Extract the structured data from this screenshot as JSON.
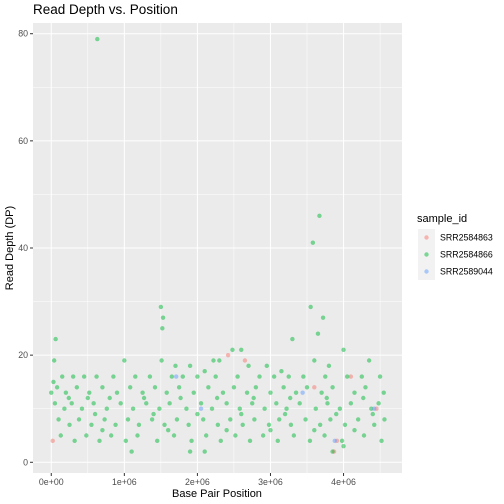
{
  "chart_data": {
    "type": "scatter",
    "title": "Read Depth vs. Position",
    "xlabel": "Base Pair Position",
    "ylabel": "Read Depth (DP)",
    "xlim": [
      -250000,
      4800000
    ],
    "ylim": [
      -2,
      82
    ],
    "x_ticks": [
      0,
      1000000,
      2000000,
      3000000,
      4000000
    ],
    "x_tick_labels": [
      "0e+00",
      "1e+06",
      "2e+06",
      "3e+06",
      "4e+06"
    ],
    "y_ticks": [
      0,
      20,
      40,
      60,
      80
    ],
    "y_tick_labels": [
      "0",
      "20",
      "40",
      "60",
      "80"
    ],
    "grid": true,
    "legend_position": "right",
    "legend_title": "sample_id",
    "series": [
      {
        "name": "SRR2584863",
        "color": "#F8766D",
        "points": [
          [
            20000,
            4
          ],
          [
            2420000,
            20
          ],
          [
            2650000,
            19
          ],
          [
            3600000,
            14
          ],
          [
            3870000,
            2
          ],
          [
            3910000,
            4
          ],
          [
            4100000,
            16
          ],
          [
            4450000,
            10
          ]
        ]
      },
      {
        "name": "SRR2584866",
        "color": "#00BA38",
        "points": [
          [
            630000,
            79
          ],
          [
            3670000,
            46
          ],
          [
            3580000,
            41
          ],
          [
            1500000,
            29
          ],
          [
            1530000,
            27
          ],
          [
            1520000,
            25
          ],
          [
            3550000,
            29
          ],
          [
            3720000,
            27
          ],
          [
            60000,
            23
          ],
          [
            2480000,
            21
          ],
          [
            2600000,
            21
          ],
          [
            4000000,
            21
          ],
          [
            3300000,
            23
          ],
          [
            3650000,
            24
          ],
          [
            40000,
            19
          ],
          [
            1510000,
            19
          ],
          [
            2220000,
            19
          ],
          [
            2300000,
            19
          ],
          [
            1000000,
            19
          ],
          [
            3600000,
            19
          ],
          [
            4350000,
            19
          ],
          [
            1700000,
            18
          ],
          [
            1900000,
            18
          ],
          [
            2100000,
            17
          ],
          [
            2700000,
            18
          ],
          [
            2950000,
            18
          ],
          [
            3800000,
            18
          ],
          [
            3150000,
            17
          ],
          [
            30000,
            15
          ],
          [
            150000,
            16
          ],
          [
            300000,
            16
          ],
          [
            450000,
            16
          ],
          [
            620000,
            16
          ],
          [
            850000,
            16
          ],
          [
            1150000,
            16
          ],
          [
            1350000,
            16
          ],
          [
            1650000,
            16
          ],
          [
            1800000,
            16
          ],
          [
            2000000,
            16
          ],
          [
            2250000,
            16
          ],
          [
            2550000,
            16
          ],
          [
            2850000,
            16
          ],
          [
            3050000,
            16
          ],
          [
            3250000,
            16
          ],
          [
            3450000,
            16
          ],
          [
            3750000,
            16
          ],
          [
            4050000,
            16
          ],
          [
            4250000,
            16
          ],
          [
            4500000,
            16
          ],
          [
            0,
            13
          ],
          [
            80000,
            14
          ],
          [
            200000,
            13
          ],
          [
            350000,
            14
          ],
          [
            520000,
            13
          ],
          [
            700000,
            14
          ],
          [
            900000,
            13
          ],
          [
            1080000,
            14
          ],
          [
            1250000,
            13
          ],
          [
            1420000,
            14
          ],
          [
            1580000,
            13
          ],
          [
            1750000,
            14
          ],
          [
            1950000,
            13
          ],
          [
            2150000,
            14
          ],
          [
            2350000,
            13
          ],
          [
            2500000,
            14
          ],
          [
            2680000,
            13
          ],
          [
            2800000,
            14
          ],
          [
            3000000,
            13
          ],
          [
            3180000,
            14
          ],
          [
            3350000,
            13
          ],
          [
            3500000,
            14
          ],
          [
            3700000,
            13
          ],
          [
            3850000,
            14
          ],
          [
            4150000,
            13
          ],
          [
            4300000,
            14
          ],
          [
            4550000,
            13
          ],
          [
            50000,
            11
          ],
          [
            180000,
            10
          ],
          [
            280000,
            11
          ],
          [
            420000,
            10
          ],
          [
            580000,
            11
          ],
          [
            760000,
            10
          ],
          [
            950000,
            11
          ],
          [
            1120000,
            10
          ],
          [
            1300000,
            11
          ],
          [
            1480000,
            10
          ],
          [
            1620000,
            11
          ],
          [
            1850000,
            10
          ],
          [
            2050000,
            11
          ],
          [
            2200000,
            10
          ],
          [
            2400000,
            11
          ],
          [
            2580000,
            10
          ],
          [
            2750000,
            11
          ],
          [
            2920000,
            10
          ],
          [
            3080000,
            11
          ],
          [
            3220000,
            10
          ],
          [
            3400000,
            11
          ],
          [
            3620000,
            10
          ],
          [
            3780000,
            11
          ],
          [
            3950000,
            10
          ],
          [
            4100000,
            11
          ],
          [
            4380000,
            10
          ],
          [
            4480000,
            11
          ],
          [
            100000,
            8
          ],
          [
            250000,
            7
          ],
          [
            380000,
            8
          ],
          [
            550000,
            7
          ],
          [
            730000,
            8
          ],
          [
            880000,
            7
          ],
          [
            1050000,
            8
          ],
          [
            1200000,
            7
          ],
          [
            1380000,
            8
          ],
          [
            1550000,
            7
          ],
          [
            1720000,
            8
          ],
          [
            1880000,
            7
          ],
          [
            2080000,
            8
          ],
          [
            2280000,
            7
          ],
          [
            2450000,
            8
          ],
          [
            2620000,
            7
          ],
          [
            2780000,
            8
          ],
          [
            2980000,
            7
          ],
          [
            3120000,
            8
          ],
          [
            3280000,
            7
          ],
          [
            3480000,
            8
          ],
          [
            3680000,
            7
          ],
          [
            3820000,
            8
          ],
          [
            4020000,
            7
          ],
          [
            4200000,
            8
          ],
          [
            4420000,
            7
          ],
          [
            4560000,
            8
          ],
          [
            130000,
            5
          ],
          [
            320000,
            4
          ],
          [
            480000,
            5
          ],
          [
            660000,
            4
          ],
          [
            820000,
            5
          ],
          [
            1020000,
            4
          ],
          [
            1180000,
            5
          ],
          [
            1450000,
            4
          ],
          [
            1680000,
            5
          ],
          [
            1920000,
            4
          ],
          [
            2120000,
            5
          ],
          [
            2320000,
            4
          ],
          [
            2520000,
            5
          ],
          [
            2720000,
            4
          ],
          [
            2900000,
            5
          ],
          [
            3100000,
            4
          ],
          [
            3320000,
            5
          ],
          [
            3540000,
            4
          ],
          [
            3740000,
            5
          ],
          [
            3980000,
            4
          ],
          [
            4280000,
            5
          ],
          [
            4520000,
            4
          ],
          [
            1100000,
            2
          ],
          [
            1900000,
            2
          ],
          [
            2100000,
            2
          ],
          [
            3850000,
            2
          ],
          [
            4000000,
            3
          ],
          [
            240000,
            12
          ],
          [
            500000,
            12
          ],
          [
            800000,
            12
          ],
          [
            1270000,
            12
          ],
          [
            1770000,
            12
          ],
          [
            2270000,
            12
          ],
          [
            2770000,
            12
          ],
          [
            3270000,
            12
          ],
          [
            3770000,
            12
          ],
          [
            4270000,
            12
          ],
          [
            600000,
            9
          ],
          [
            1400000,
            9
          ],
          [
            2000000,
            9
          ],
          [
            2600000,
            9
          ],
          [
            3200000,
            9
          ],
          [
            3900000,
            9
          ],
          [
            4400000,
            9
          ],
          [
            700000,
            6
          ],
          [
            1600000,
            6
          ],
          [
            2400000,
            6
          ],
          [
            3000000,
            6
          ],
          [
            3600000,
            6
          ],
          [
            4150000,
            6
          ]
        ]
      },
      {
        "name": "SRR2589044",
        "color": "#619CFF",
        "points": [
          [
            1710000,
            16
          ],
          [
            2050000,
            10
          ],
          [
            3440000,
            13
          ],
          [
            3880000,
            4
          ],
          [
            4420000,
            10
          ]
        ]
      }
    ]
  }
}
